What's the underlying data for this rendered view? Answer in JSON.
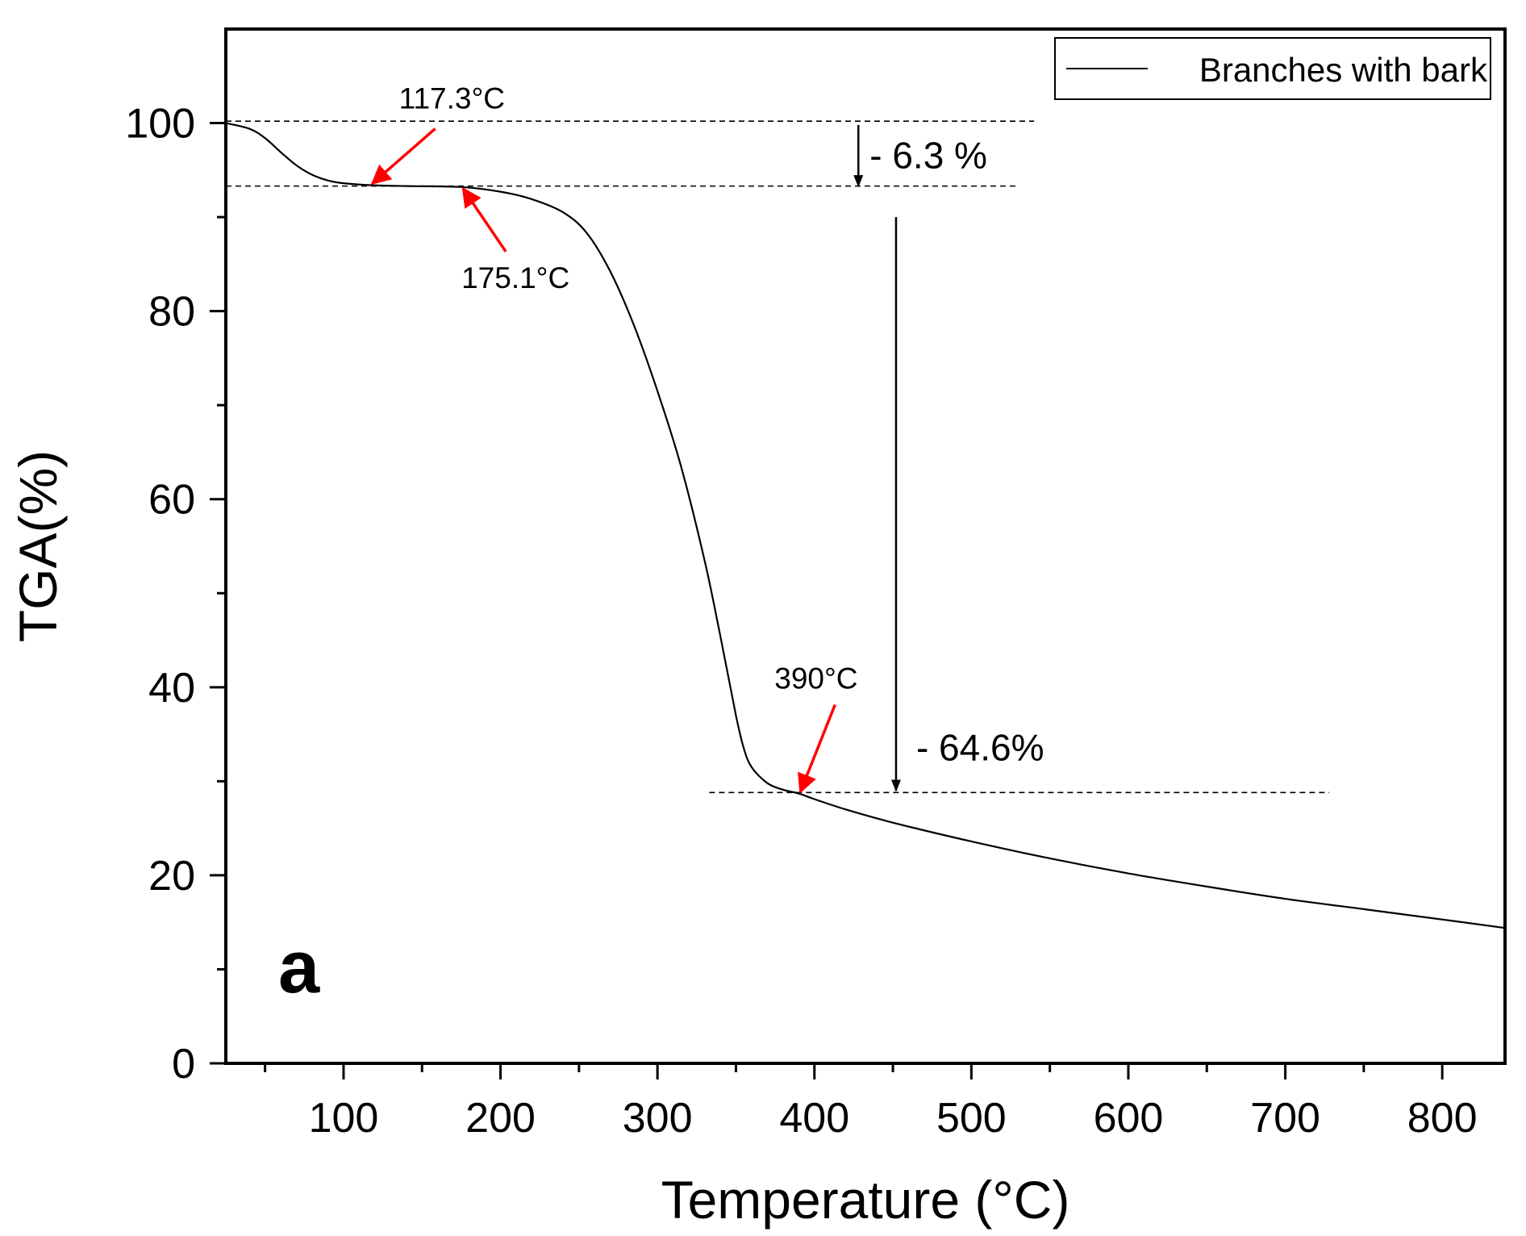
{
  "chart_data": {
    "type": "line",
    "title": "",
    "xlabel": "Temperature (°C)",
    "ylabel": "TGA(%)",
    "xlim": [
      25,
      840
    ],
    "ylim": [
      0,
      110
    ],
    "x_ticks": [
      100,
      200,
      300,
      400,
      500,
      600,
      700,
      800
    ],
    "x_tick_labels": [
      "100",
      "200",
      "300",
      "400",
      "500",
      "600",
      "700",
      "800"
    ],
    "y_ticks": [
      0,
      20,
      40,
      60,
      80,
      100
    ],
    "y_tick_labels": [
      "0",
      "20",
      "40",
      "60",
      "80",
      "100"
    ],
    "grid": false,
    "legend": {
      "position": "top-right",
      "entries": [
        "Branches with bark"
      ]
    },
    "panel_label": "a",
    "series": [
      {
        "name": "Branches with bark",
        "color": "#000000",
        "x": [
          25,
          40,
          50,
          60,
          70,
          80,
          90,
          100,
          117,
          140,
          175,
          200,
          220,
          240,
          255,
          270,
          285,
          300,
          315,
          330,
          340,
          350,
          355,
          360,
          370,
          380,
          390,
          400,
          420,
          450,
          500,
          550,
          600,
          650,
          700,
          750,
          800,
          840
        ],
        "y": [
          100,
          99.4,
          98.4,
          96.9,
          95.5,
          94.5,
          93.9,
          93.6,
          93.4,
          93.3,
          93.2,
          92.7,
          91.9,
          90.5,
          88.3,
          84.2,
          78.5,
          71.5,
          63.5,
          53.5,
          45.5,
          37.0,
          33.5,
          31.5,
          29.8,
          29.1,
          28.7,
          28.1,
          27.0,
          25.6,
          23.6,
          21.8,
          20.2,
          18.8,
          17.5,
          16.4,
          15.3,
          14.4
        ]
      }
    ],
    "reference_lines": [
      {
        "name": "initial-mass",
        "y": 100.2,
        "x_from": 25,
        "x_to": 540
      },
      {
        "name": "moisture-plateau",
        "y": 93.3,
        "x_from": 25,
        "x_to": 530
      },
      {
        "name": "char-plateau",
        "y": 28.8,
        "x_from": 333,
        "x_to": 728
      }
    ],
    "annotations": [
      {
        "text": "117.3°C",
        "x": 117.3,
        "y": 93.4,
        "arrow_color": "#ff0000"
      },
      {
        "text": "175.1°C",
        "x": 175.1,
        "y": 93.2,
        "arrow_color": "#ff0000"
      },
      {
        "text": "390°C",
        "x": 390,
        "y": 28.7,
        "arrow_color": "#ff0000"
      }
    ],
    "mass_loss": [
      {
        "text": "- 6.3 %",
        "x": 428,
        "y_from": 99.8,
        "y_to": 93.3
      },
      {
        "text": "- 64.6%",
        "x": 452,
        "y_from": 90.0,
        "y_to": 29.0
      }
    ]
  }
}
